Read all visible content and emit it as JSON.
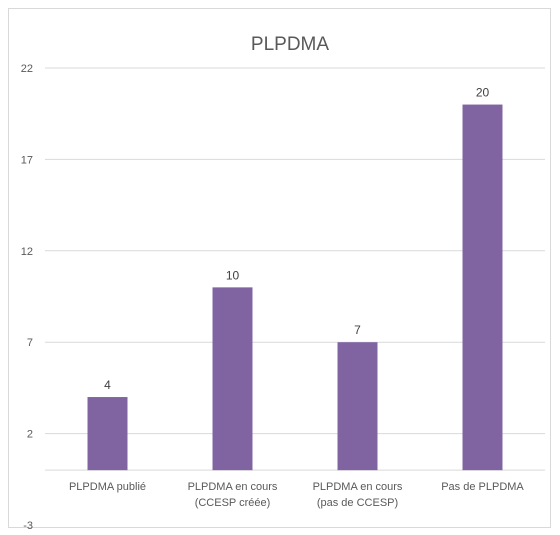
{
  "chart_data": {
    "type": "bar",
    "title": "PLPDMA",
    "categories": [
      [
        "PLPDMA publié"
      ],
      [
        "PLPDMA en cours",
        "(CCESP créée)"
      ],
      [
        "PLPDMA en cours",
        "(pas de CCESP)"
      ],
      [
        "Pas de PLPDMA"
      ]
    ],
    "values": [
      4,
      10,
      7,
      20
    ],
    "data_labels": [
      "4",
      "10",
      "7",
      "20"
    ],
    "ylim": [
      -3,
      22
    ],
    "yticks": [
      22,
      17,
      12,
      7,
      2,
      -3
    ],
    "grid": true,
    "legend": "none",
    "bar_color": "#8064a2"
  }
}
